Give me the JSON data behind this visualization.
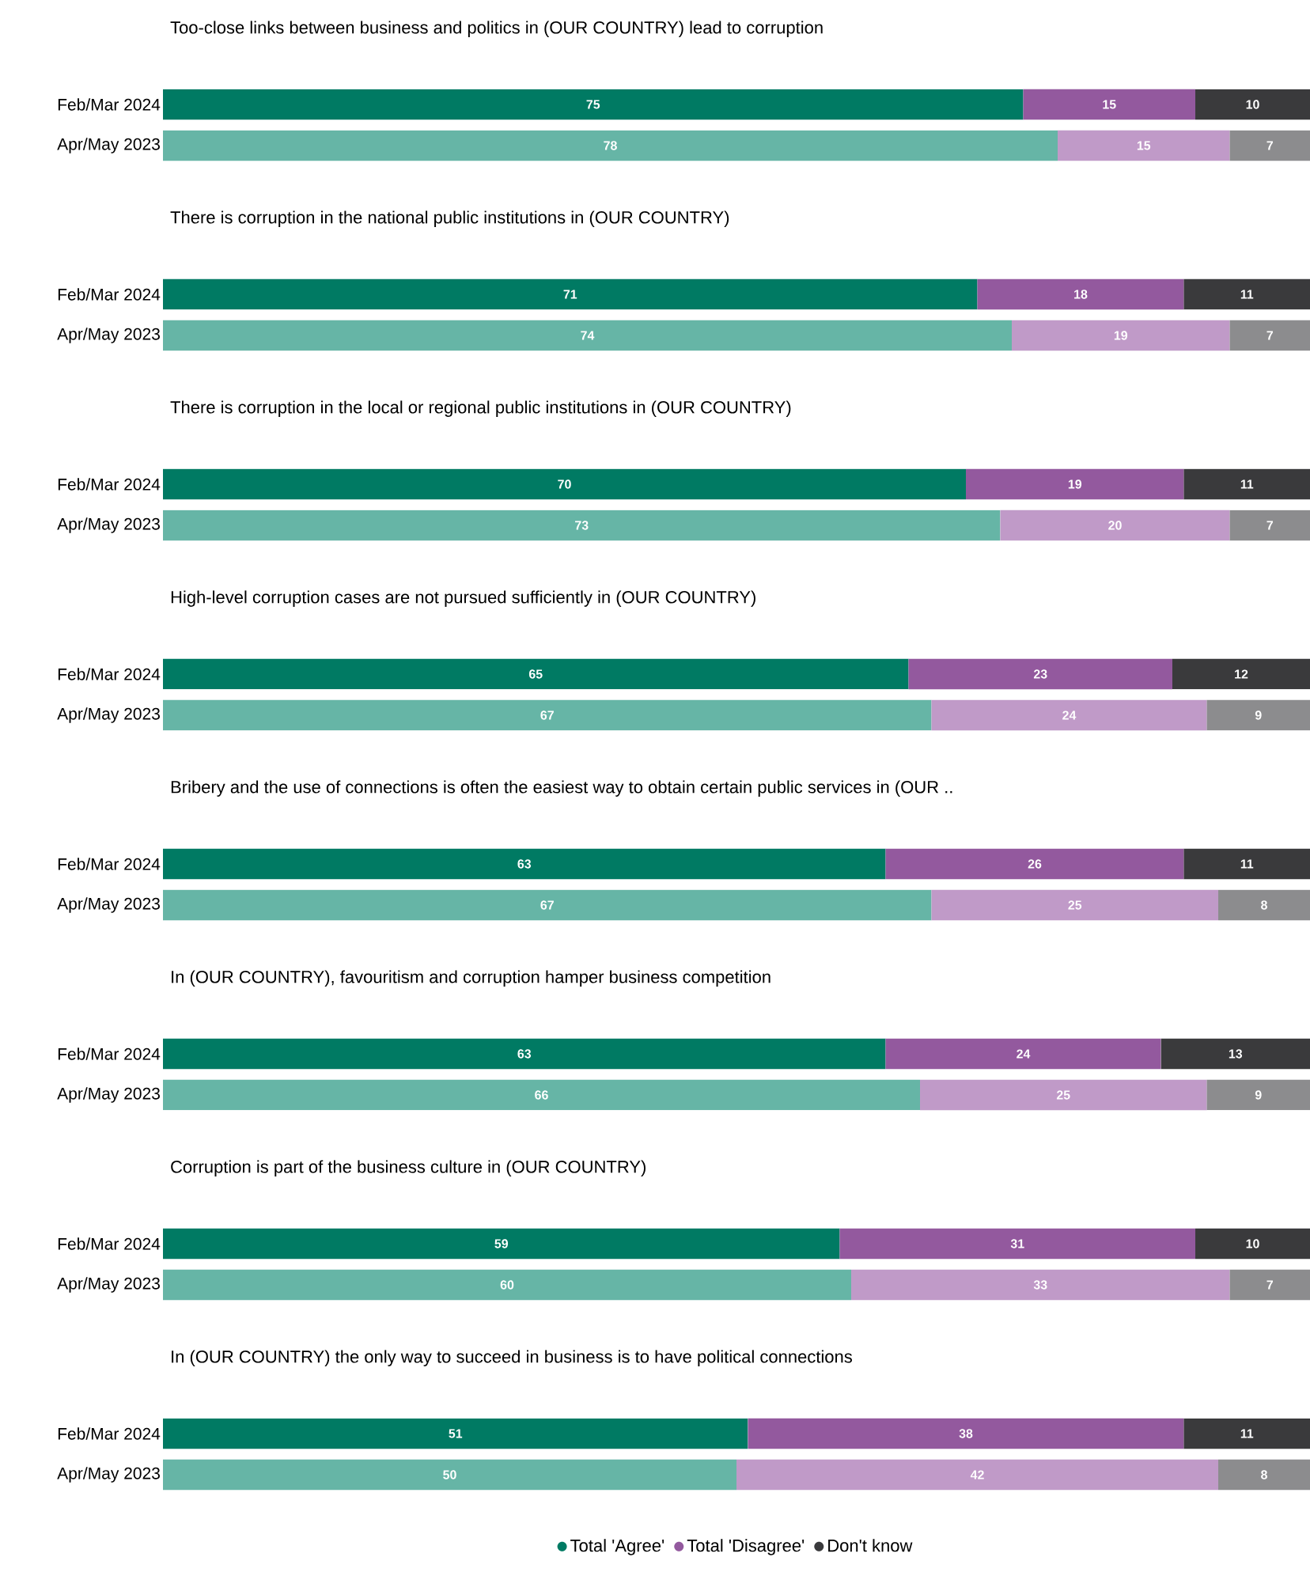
{
  "chart_data": [
    {
      "type": "bar",
      "orientation": "horizontal",
      "stacked": true,
      "data_labels": true,
      "tick_labels": "y",
      "xlim": [
        0,
        100
      ],
      "title": "Too-close links between business and politics in (OUR COUNTRY) lead to corruption",
      "categories": [
        "Feb/Mar 2024",
        "Apr/May 2023"
      ],
      "series": [
        {
          "colors": [
            "#007a63",
            "#66b5a6"
          ],
          "values": [
            75,
            78
          ]
        },
        {
          "colors": [
            "#93599e",
            "#c09ac8"
          ],
          "values": [
            15,
            15
          ]
        },
        {
          "colors": [
            "#3a3a3c",
            "#8c8c8e"
          ],
          "values": [
            10,
            7
          ]
        }
      ]
    },
    {
      "type": "bar",
      "orientation": "horizontal",
      "stacked": true,
      "data_labels": true,
      "tick_labels": "y",
      "xlim": [
        0,
        100
      ],
      "title": "There is corruption in the national public institutions in (OUR COUNTRY)",
      "categories": [
        "Feb/Mar 2024",
        "Apr/May 2023"
      ],
      "series": [
        {
          "colors": [
            "#007a63",
            "#66b5a6"
          ],
          "values": [
            71,
            74
          ]
        },
        {
          "colors": [
            "#93599e",
            "#c09ac8"
          ],
          "values": [
            18,
            19
          ]
        },
        {
          "colors": [
            "#3a3a3c",
            "#8c8c8e"
          ],
          "values": [
            11,
            7
          ]
        }
      ]
    },
    {
      "type": "bar",
      "orientation": "horizontal",
      "stacked": true,
      "data_labels": true,
      "tick_labels": "y",
      "xlim": [
        0,
        100
      ],
      "title": "There is corruption in the local or regional public institutions in (OUR COUNTRY)",
      "categories": [
        "Feb/Mar 2024",
        "Apr/May 2023"
      ],
      "series": [
        {
          "colors": [
            "#007a63",
            "#66b5a6"
          ],
          "values": [
            70,
            73
          ]
        },
        {
          "colors": [
            "#93599e",
            "#c09ac8"
          ],
          "values": [
            19,
            20
          ]
        },
        {
          "colors": [
            "#3a3a3c",
            "#8c8c8e"
          ],
          "values": [
            11,
            7
          ]
        }
      ]
    },
    {
      "type": "bar",
      "orientation": "horizontal",
      "stacked": true,
      "data_labels": true,
      "tick_labels": "y",
      "xlim": [
        0,
        100
      ],
      "title": "High-level corruption cases are not pursued sufficiently in (OUR COUNTRY)",
      "categories": [
        "Feb/Mar 2024",
        "Apr/May 2023"
      ],
      "series": [
        {
          "colors": [
            "#007a63",
            "#66b5a6"
          ],
          "values": [
            65,
            67
          ]
        },
        {
          "colors": [
            "#93599e",
            "#c09ac8"
          ],
          "values": [
            23,
            24
          ]
        },
        {
          "colors": [
            "#3a3a3c",
            "#8c8c8e"
          ],
          "values": [
            12,
            9
          ]
        }
      ]
    },
    {
      "type": "bar",
      "orientation": "horizontal",
      "stacked": true,
      "data_labels": true,
      "tick_labels": "y",
      "xlim": [
        0,
        100
      ],
      "title": "Bribery and the use of connections is often the easiest way to obtain certain public services in (OUR ..",
      "categories": [
        "Feb/Mar 2024",
        "Apr/May 2023"
      ],
      "series": [
        {
          "colors": [
            "#007a63",
            "#66b5a6"
          ],
          "values": [
            63,
            67
          ]
        },
        {
          "colors": [
            "#93599e",
            "#c09ac8"
          ],
          "values": [
            26,
            25
          ]
        },
        {
          "colors": [
            "#3a3a3c",
            "#8c8c8e"
          ],
          "values": [
            11,
            8
          ]
        }
      ]
    },
    {
      "type": "bar",
      "orientation": "horizontal",
      "stacked": true,
      "data_labels": true,
      "tick_labels": "y",
      "xlim": [
        0,
        100
      ],
      "title": "In (OUR COUNTRY), favouritism and corruption hamper business competition",
      "categories": [
        "Feb/Mar 2024",
        "Apr/May 2023"
      ],
      "series": [
        {
          "colors": [
            "#007a63",
            "#66b5a6"
          ],
          "values": [
            63,
            66
          ]
        },
        {
          "colors": [
            "#93599e",
            "#c09ac8"
          ],
          "values": [
            24,
            25
          ]
        },
        {
          "colors": [
            "#3a3a3c",
            "#8c8c8e"
          ],
          "values": [
            13,
            9
          ]
        }
      ]
    },
    {
      "type": "bar",
      "orientation": "horizontal",
      "stacked": true,
      "data_labels": true,
      "tick_labels": "y",
      "xlim": [
        0,
        100
      ],
      "title": "Corruption is part of the business culture in (OUR COUNTRY)",
      "categories": [
        "Feb/Mar 2024",
        "Apr/May 2023"
      ],
      "series": [
        {
          "colors": [
            "#007a63",
            "#66b5a6"
          ],
          "values": [
            59,
            60
          ]
        },
        {
          "colors": [
            "#93599e",
            "#c09ac8"
          ],
          "values": [
            31,
            33
          ]
        },
        {
          "colors": [
            "#3a3a3c",
            "#8c8c8e"
          ],
          "values": [
            10,
            7
          ]
        }
      ]
    },
    {
      "type": "bar",
      "orientation": "horizontal",
      "stacked": true,
      "data_labels": true,
      "tick_labels": "y",
      "xlim": [
        0,
        100
      ],
      "legend": "bottom",
      "title": "In (OUR COUNTRY) the only way to succeed in business is to have political connections",
      "categories": [
        "Feb/Mar 2024",
        "Apr/May 2023"
      ],
      "series": [
        {
          "name": "Total 'Agree'",
          "colors": [
            "#007a63",
            "#66b5a6"
          ],
          "values": [
            51,
            50
          ]
        },
        {
          "name": "Total 'Disagree'",
          "colors": [
            "#93599e",
            "#c09ac8"
          ],
          "values": [
            38,
            42
          ]
        },
        {
          "name": "Don't know",
          "colors": [
            "#3a3a3c",
            "#8c8c8e"
          ],
          "values": [
            11,
            8
          ]
        }
      ]
    }
  ]
}
